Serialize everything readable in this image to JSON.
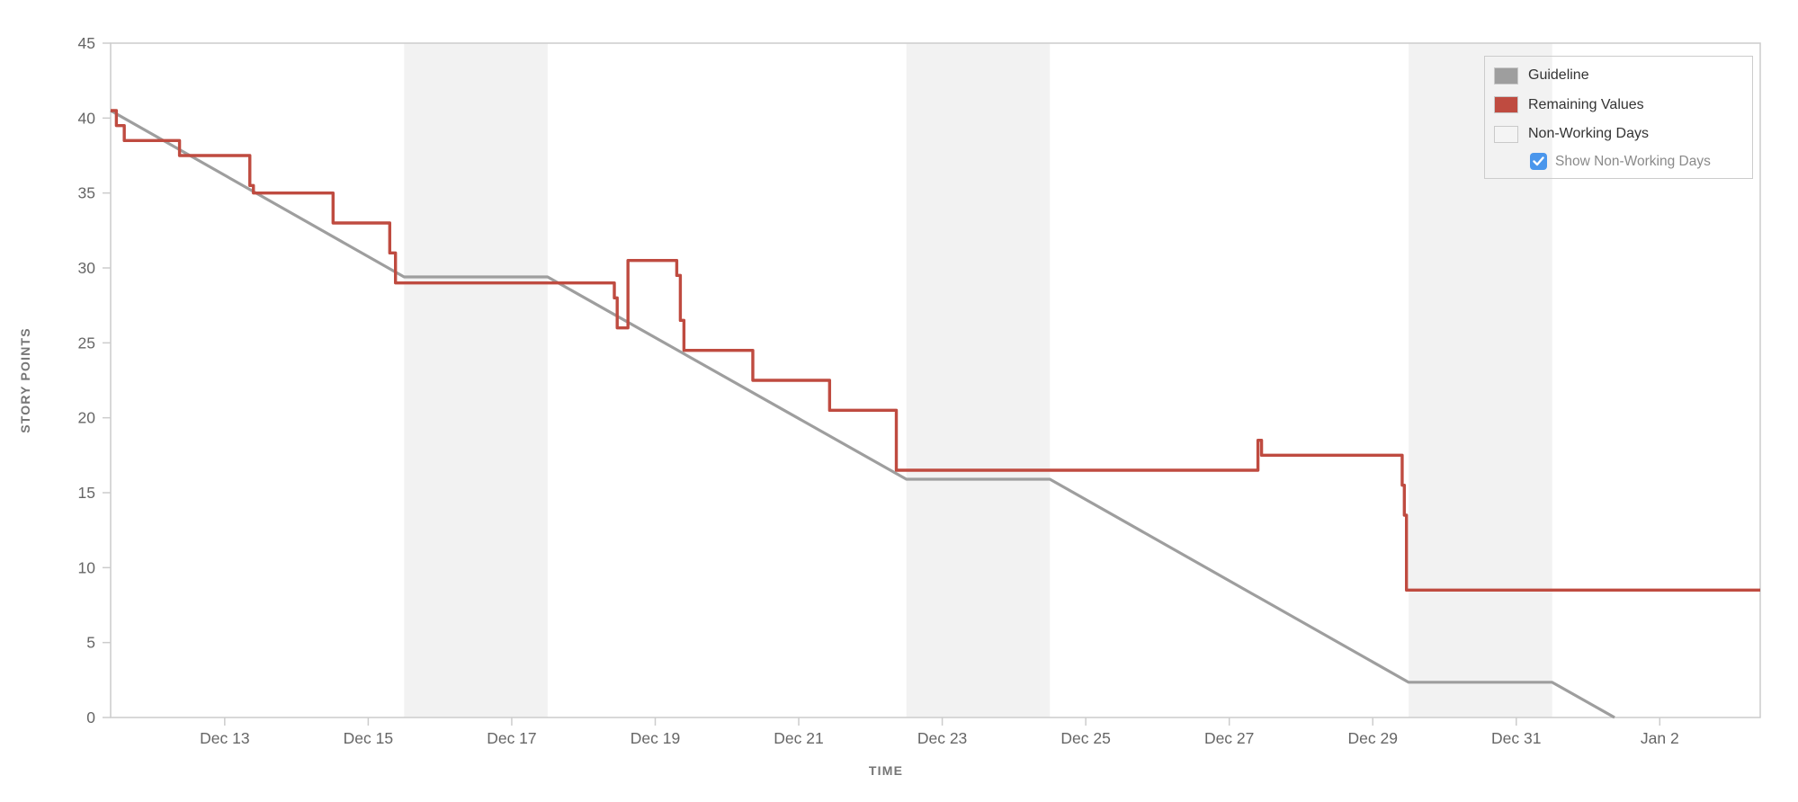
{
  "legend": {
    "items": [
      {
        "label": "Guideline",
        "swatch_color": "#9e9e9e"
      },
      {
        "label": "Remaining Values",
        "swatch_color": "#bf4b40"
      },
      {
        "label": "Non-Working Days",
        "swatch_color": "#f4f4f4"
      }
    ],
    "checkbox": {
      "label": "Show Non-Working Days",
      "checked": true,
      "color": "#4a96ec"
    }
  },
  "chart_data": {
    "type": "line",
    "title": "",
    "x_axis": {
      "label": "TIME",
      "unit": "date (day index: Dec 11 = 11 ... Dec 31 = 31, Jan 1 = 32, Jan 2 = 33)",
      "domain_days": [
        11.41,
        34.4
      ],
      "ticks": [
        {
          "day": 13,
          "label": "Dec 13"
        },
        {
          "day": 15,
          "label": "Dec 15"
        },
        {
          "day": 17,
          "label": "Dec 17"
        },
        {
          "day": 19,
          "label": "Dec 19"
        },
        {
          "day": 21,
          "label": "Dec 21"
        },
        {
          "day": 23,
          "label": "Dec 23"
        },
        {
          "day": 25,
          "label": "Dec 25"
        },
        {
          "day": 27,
          "label": "Dec 27"
        },
        {
          "day": 29,
          "label": "Dec 29"
        },
        {
          "day": 31,
          "label": "Dec 31"
        },
        {
          "day": 33,
          "label": "Jan 2"
        }
      ]
    },
    "y_axis": {
      "label": "STORY POINTS",
      "min": 0,
      "max": 45,
      "tick_step": 5
    },
    "grid": false,
    "legend_position": "top-right",
    "non_working_day_bands": [
      [
        15.5,
        17.5
      ],
      [
        22.5,
        24.5
      ],
      [
        29.5,
        31.5
      ]
    ],
    "series": [
      {
        "name": "Guideline",
        "mode": "linear",
        "color": "#9e9e9e",
        "points": [
          [
            11.41,
            40.5
          ],
          [
            15.5,
            29.4
          ],
          [
            17.5,
            29.4
          ],
          [
            22.5,
            15.9
          ],
          [
            24.5,
            15.9
          ],
          [
            29.5,
            2.35
          ],
          [
            31.5,
            2.35
          ],
          [
            32.37,
            0
          ]
        ]
      },
      {
        "name": "Remaining Values",
        "mode": "step-after",
        "color": "#bf4b40",
        "end_day": 34.4,
        "points": [
          [
            11.41,
            40.5
          ],
          [
            11.49,
            39.5
          ],
          [
            11.6,
            38.5
          ],
          [
            12.37,
            37.5
          ],
          [
            13.35,
            35.5
          ],
          [
            13.4,
            35
          ],
          [
            14.51,
            33
          ],
          [
            15.3,
            31
          ],
          [
            15.38,
            29
          ],
          [
            18.43,
            28
          ],
          [
            18.47,
            26
          ],
          [
            18.62,
            30.5
          ],
          [
            19.3,
            29.5
          ],
          [
            19.35,
            26.5
          ],
          [
            19.4,
            24.5
          ],
          [
            20.36,
            22.5
          ],
          [
            21.43,
            20.5
          ],
          [
            22.36,
            16.5
          ],
          [
            27.4,
            18.5
          ],
          [
            27.45,
            17.5
          ],
          [
            29.41,
            15.5
          ],
          [
            29.44,
            13.5
          ],
          [
            29.47,
            8.5
          ]
        ]
      }
    ],
    "colors": {
      "band": "#f2f2f2",
      "axis_border": "#cccccc",
      "tick_label": "#666666",
      "axis_title": "#757575"
    }
  }
}
